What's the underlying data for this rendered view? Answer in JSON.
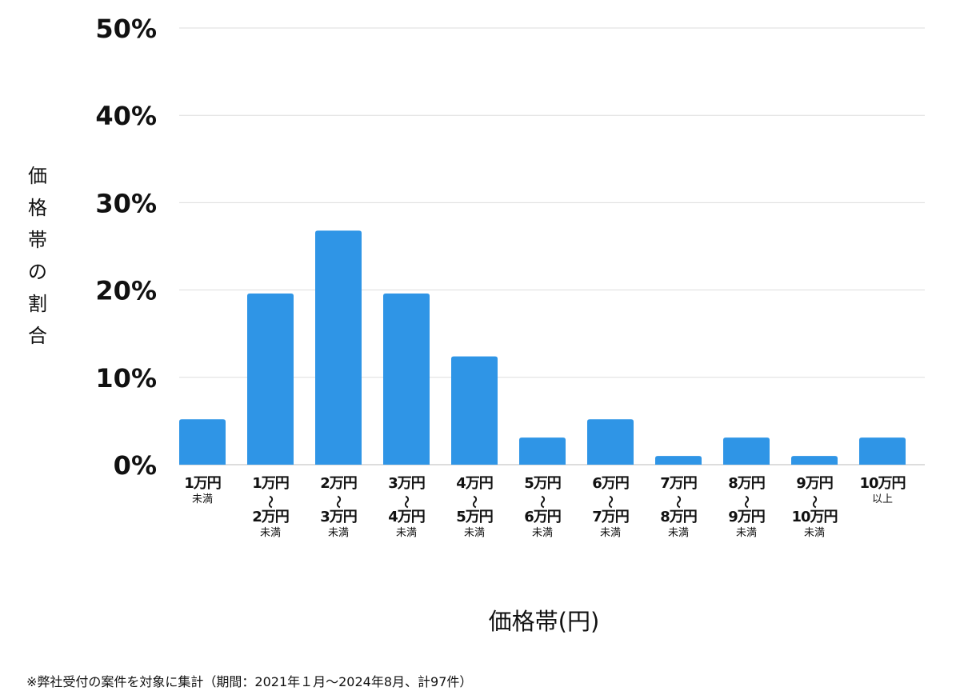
{
  "chart_data": {
    "type": "bar",
    "title": "",
    "xlabel": "価格帯(円)",
    "ylabel": "価格帯の割合",
    "ylim": [
      0,
      50
    ],
    "yticks": [
      "0%",
      "10%",
      "20%",
      "30%",
      "40%",
      "50%"
    ],
    "grid": true,
    "bar_color": "#2f95e6",
    "categories": [
      {
        "lines": [
          "1万円",
          "未満"
        ]
      },
      {
        "lines": [
          "1万円",
          "〜",
          "2万円",
          "未満"
        ]
      },
      {
        "lines": [
          "2万円",
          "〜",
          "3万円",
          "未満"
        ]
      },
      {
        "lines": [
          "3万円",
          "〜",
          "4万円",
          "未満"
        ]
      },
      {
        "lines": [
          "4万円",
          "〜",
          "5万円",
          "未満"
        ]
      },
      {
        "lines": [
          "5万円",
          "〜",
          "6万円",
          "未満"
        ]
      },
      {
        "lines": [
          "6万円",
          "〜",
          "7万円",
          "未満"
        ]
      },
      {
        "lines": [
          "7万円",
          "〜",
          "8万円",
          "未満"
        ]
      },
      {
        "lines": [
          "8万円",
          "〜",
          "9万円",
          "未満"
        ]
      },
      {
        "lines": [
          "9万円",
          "〜",
          "10万円",
          "未満"
        ]
      },
      {
        "lines": [
          "10万円",
          "以上"
        ]
      }
    ],
    "values": [
      5.2,
      19.6,
      26.8,
      19.6,
      12.4,
      3.1,
      5.2,
      1.0,
      3.1,
      1.0,
      3.1
    ]
  },
  "footnote": "※弊社受付の案件を対象に集計（期間：2021年１月〜2024年8月、計97件）"
}
